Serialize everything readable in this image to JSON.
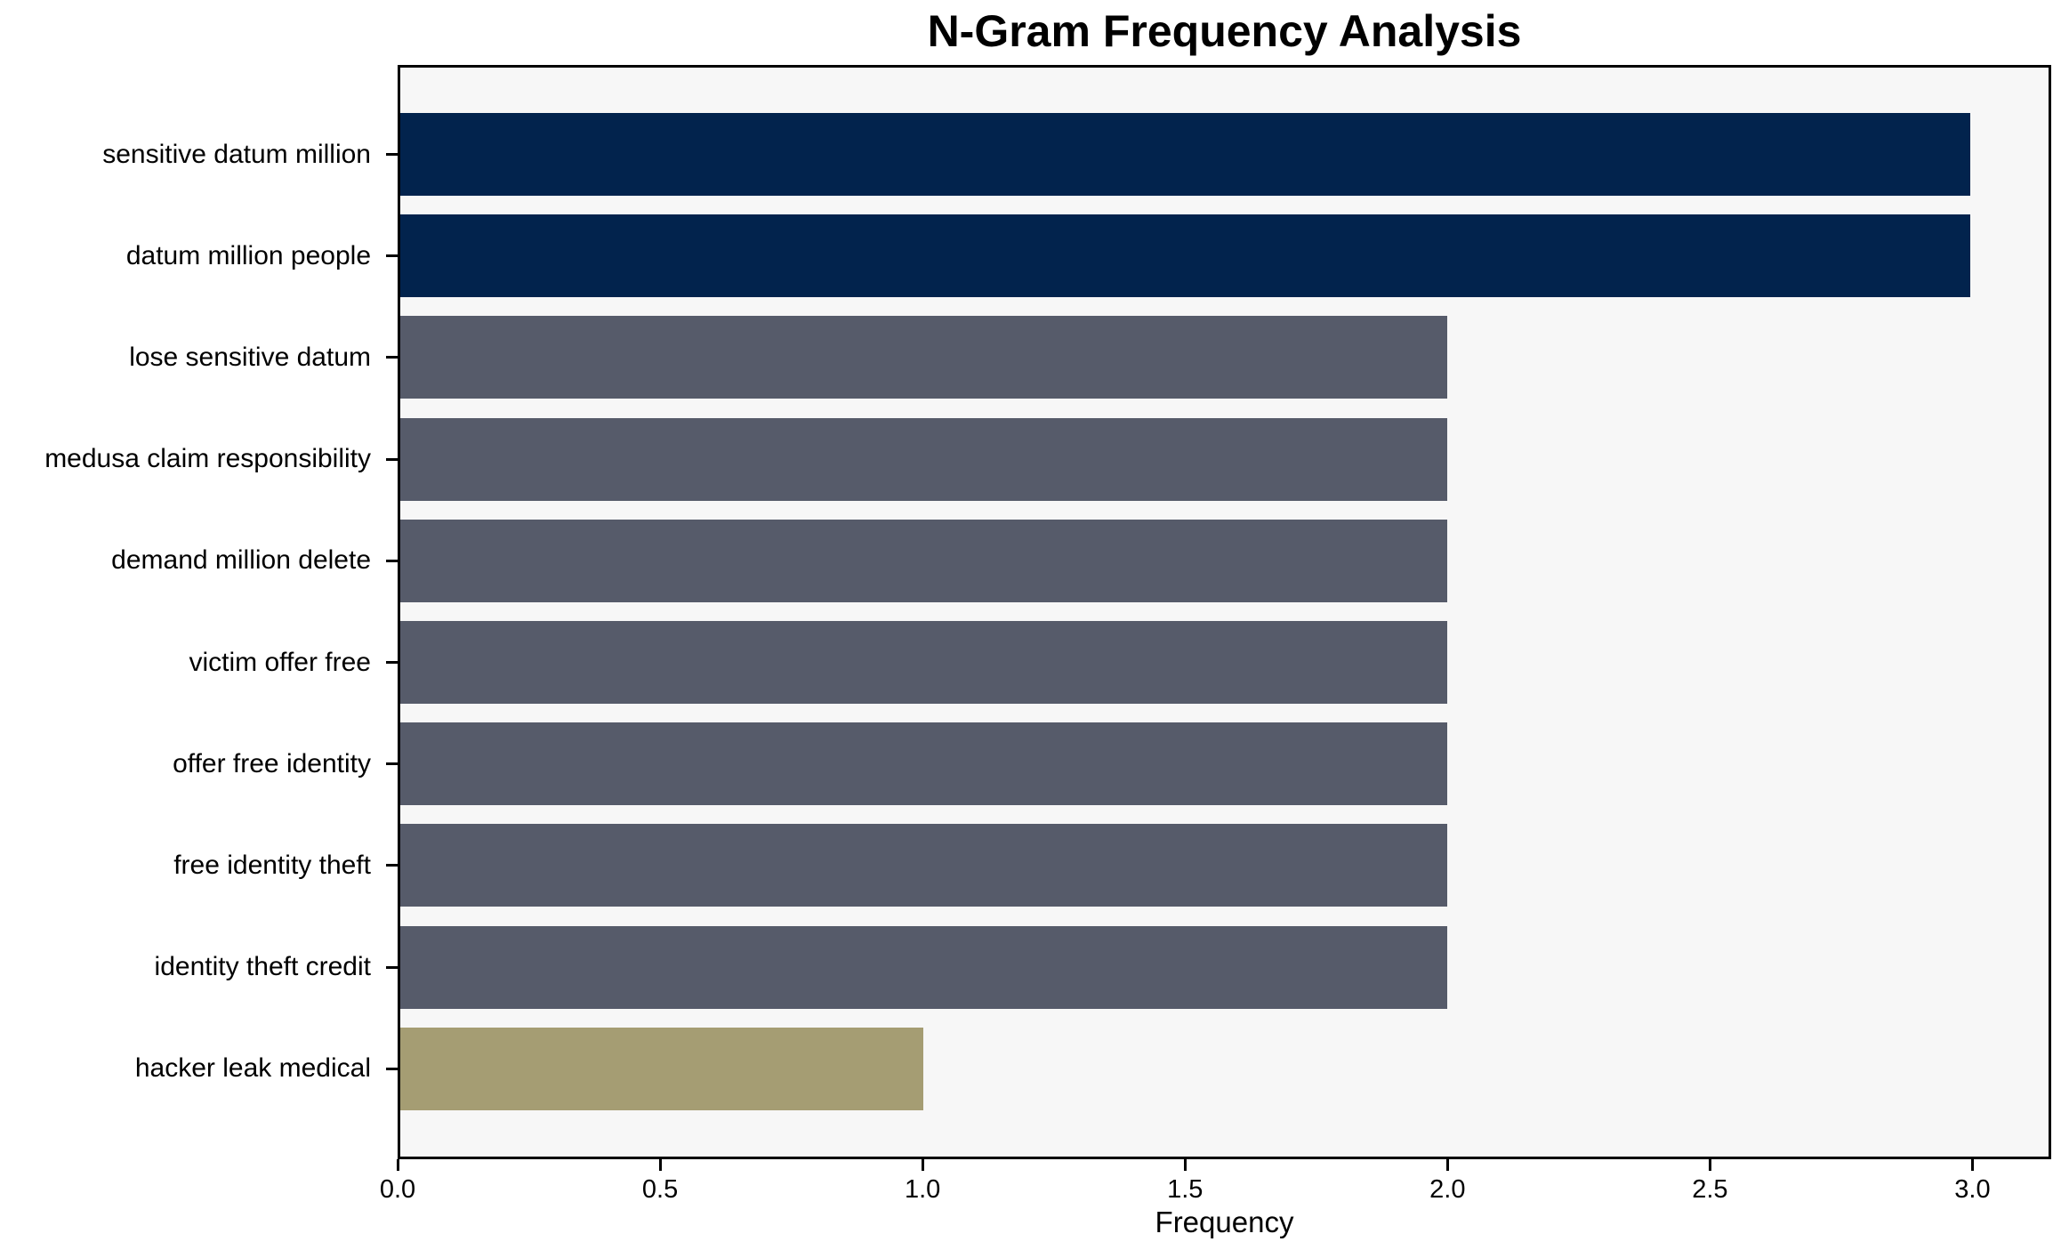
{
  "chart_data": {
    "type": "bar",
    "orientation": "horizontal",
    "title": "N-Gram Frequency Analysis",
    "xlabel": "Frequency",
    "ylabel": "",
    "categories": [
      "sensitive datum million",
      "datum million people",
      "lose sensitive datum",
      "medusa claim responsibility",
      "demand million delete",
      "victim offer free",
      "offer free identity",
      "free identity theft",
      "identity theft credit",
      "hacker leak medical"
    ],
    "values": [
      3,
      3,
      2,
      2,
      2,
      2,
      2,
      2,
      2,
      1
    ],
    "bar_colors": [
      "#02234d",
      "#02234d",
      "#565b6a",
      "#565b6a",
      "#565b6a",
      "#565b6a",
      "#565b6a",
      "#565b6a",
      "#565b6a",
      "#a59d73"
    ],
    "xticks": [
      0.0,
      0.5,
      1.0,
      1.5,
      2.0,
      2.5,
      3.0
    ],
    "xtick_labels": [
      "0.0",
      "0.5",
      "1.0",
      "1.5",
      "2.0",
      "2.5",
      "3.0"
    ],
    "xlim": [
      0,
      3.15
    ],
    "grid": false,
    "legend": null,
    "plot_background": "#f7f7f7",
    "figure_background": "#ffffff",
    "spine_color": "#000000"
  }
}
